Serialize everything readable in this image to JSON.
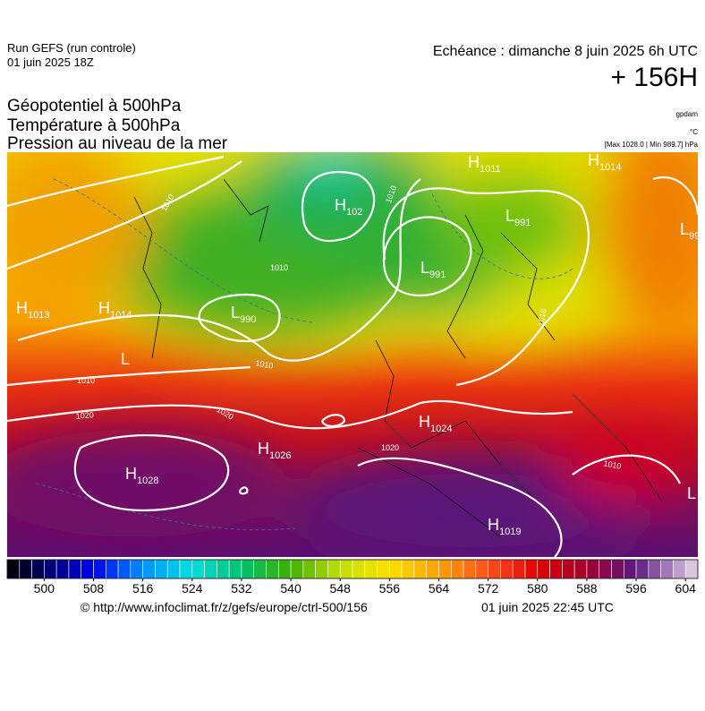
{
  "header": {
    "run": "Run GEFS (run controle)",
    "run_date": "01 juin 2025 18Z",
    "valid": "Echéance : dimanche 8 juin 2025 6h UTC",
    "lead": "+ 156H",
    "titles": [
      "Géopotentiel à 500hPa",
      "Température à 500hPa",
      "Pression au niveau de la mer"
    ],
    "unit_geo": "gpdam",
    "unit_temp": "°C",
    "pressure_range": "[Max 1028.0 | Min 989.7] hPa"
  },
  "pressure_centers": [
    {
      "symbol": "H",
      "value": 1013
    },
    {
      "symbol": "H",
      "value": 1014
    },
    {
      "symbol": "L",
      "value": 990
    },
    {
      "symbol": "H",
      "value": 102
    },
    {
      "symbol": "L",
      "value": 991
    },
    {
      "symbol": "L",
      "value": 991
    },
    {
      "symbol": "H",
      "value": 1011
    },
    {
      "symbol": "H",
      "value": 1014
    },
    {
      "symbol": "L",
      "value": 99
    },
    {
      "symbol": "H",
      "value": 1024
    },
    {
      "symbol": "H",
      "value": 1026
    },
    {
      "symbol": "H",
      "value": 1028
    },
    {
      "symbol": "H",
      "value": 1019
    },
    {
      "symbol": "L"
    },
    {
      "symbol": "L"
    }
  ],
  "isobar_labels": [
    1010,
    1010,
    1010,
    1010,
    1010,
    1020,
    1020,
    1020,
    1010,
    1010
  ],
  "colorbar": {
    "range": [
      494,
      606
    ],
    "step": 2,
    "ticks": [
      500,
      508,
      516,
      524,
      532,
      540,
      548,
      556,
      564,
      572,
      580,
      588,
      596,
      604
    ],
    "stops": [
      [
        494,
        "#000000"
      ],
      [
        500,
        "#000060"
      ],
      [
        508,
        "#0000f0"
      ],
      [
        516,
        "#0090ff"
      ],
      [
        524,
        "#00e0e0"
      ],
      [
        532,
        "#00c070"
      ],
      [
        540,
        "#40b000"
      ],
      [
        548,
        "#c0e000"
      ],
      [
        556,
        "#ffe000"
      ],
      [
        564,
        "#ffa000"
      ],
      [
        572,
        "#ff5020"
      ],
      [
        580,
        "#e00000"
      ],
      [
        588,
        "#a00030"
      ],
      [
        596,
        "#5a1a80"
      ],
      [
        606,
        "#e8d8ec"
      ]
    ]
  },
  "footer": {
    "url": "© http://www.infoclimat.fr/z/gefs/europe/ctrl-500/156",
    "generated": "01 juin 2025 22:45 UTC"
  }
}
